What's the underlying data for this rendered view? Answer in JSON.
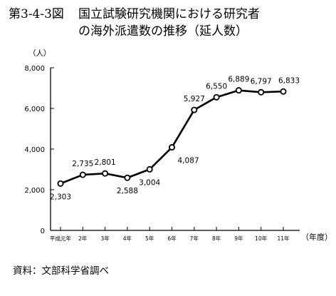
{
  "header": {
    "figure_number": "第3-4-3図",
    "title_line1": "国立試験研究機関における研究者",
    "title_line2": "の海外派遣数の推移（延人数）"
  },
  "source_note": "資料：文部科学省調べ",
  "chart_data": {
    "type": "line",
    "title": "国立試験研究機関における研究者の海外派遣数の推移（延人数）",
    "ylabel": "（人）",
    "xlabel": "（年度）",
    "ylim": [
      0,
      8000
    ],
    "yticks": [
      0,
      2000,
      4000,
      6000,
      8000
    ],
    "ytick_labels": [
      "0",
      "2,000",
      "4,000",
      "6,000",
      "8,000"
    ],
    "categories": [
      "平成元年",
      "2年",
      "3年",
      "4年",
      "5年",
      "6年",
      "7年",
      "8年",
      "9年",
      "10年",
      "11年"
    ],
    "series": [
      {
        "values": [
          2303,
          2735,
          2801,
          2588,
          3004,
          4087,
          5927,
          6550,
          6889,
          6797,
          6833
        ],
        "labels": [
          "2,303",
          "2,735",
          "2,801",
          "2,588",
          "3,004",
          "4,087",
          "5,927",
          "6,550",
          "6,889",
          "6,797",
          "6,833"
        ],
        "label_pos": [
          "below",
          "above",
          "above",
          "below",
          "below",
          "right",
          "above",
          "above",
          "above",
          "above",
          "above"
        ]
      }
    ],
    "grid": false,
    "line_color": "#000000",
    "marker": "open-circle"
  }
}
